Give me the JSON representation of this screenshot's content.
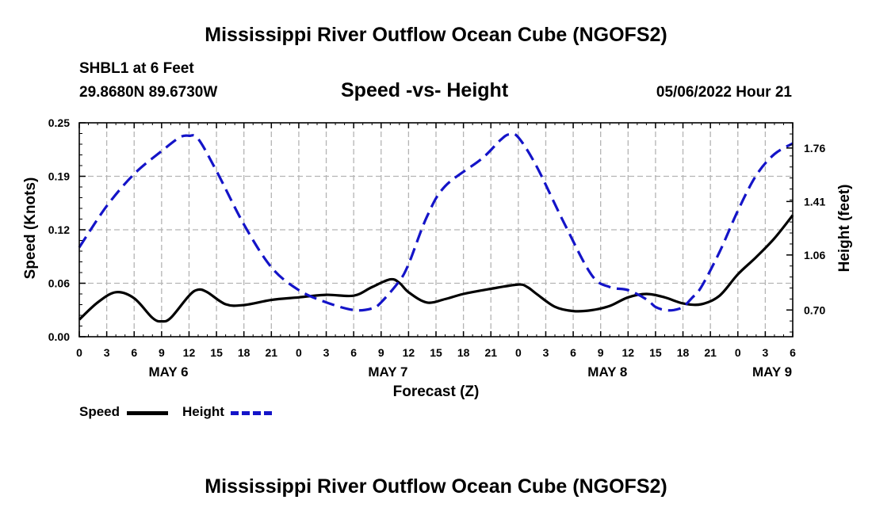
{
  "page": {
    "title_top": "Mississippi River Outflow Ocean Cube (NGOFS2)",
    "title_bottom": "Mississippi River Outflow Ocean Cube (NGOFS2)",
    "station": "SHBL1 at 6 Feet",
    "coords": "29.8680N  89.6730W",
    "subtitle": "Speed -vs- Height",
    "datetime": "05/06/2022 Hour 21"
  },
  "legend": {
    "speed_label": "Speed",
    "height_label": "Height",
    "speed_color": "#000000",
    "height_color": "#1414c8"
  },
  "chart_data": {
    "type": "line",
    "title": "Speed -vs- Height",
    "xlabel": "Forecast (Z)",
    "ylabel_left": "Speed (Knots)",
    "ylabel_right": "Height (feet)",
    "x_range_hours": [
      0,
      78
    ],
    "x_tick_step_hours": 3,
    "x_tick_labels": [
      "0",
      "3",
      "6",
      "9",
      "12",
      "15",
      "18",
      "21",
      "0",
      "3",
      "6",
      "9",
      "12",
      "15",
      "18",
      "21",
      "0",
      "3",
      "6",
      "9",
      "12",
      "15",
      "18",
      "21",
      "0",
      "3",
      "6"
    ],
    "date_labels": [
      {
        "label": "MAY 6",
        "hour": 9.75
      },
      {
        "label": "MAY 7",
        "hour": 33.75
      },
      {
        "label": "MAY 8",
        "hour": 57.75
      },
      {
        "label": "MAY 9",
        "hour": 75.75
      }
    ],
    "ylim_left": [
      0,
      0.25
    ],
    "yticks_left": [
      "0.00",
      "0.06",
      "0.12",
      "0.19",
      "0.25"
    ],
    "yticks_left_values": [
      0,
      0.0625,
      0.125,
      0.1875,
      0.25
    ],
    "ylim_right": [
      0.525,
      1.925
    ],
    "yticks_right": [
      "0.70",
      "1.06",
      "1.41",
      "1.76"
    ],
    "yticks_right_values": [
      0.7,
      1.06,
      1.41,
      1.76
    ],
    "grid": true,
    "series": [
      {
        "name": "Speed",
        "axis": "left",
        "style": "solid",
        "color": "#000000",
        "x": [
          0,
          2,
          4,
          6,
          8,
          9,
          10,
          12,
          13,
          14,
          16,
          18,
          21,
          24,
          27,
          30,
          32,
          34,
          35,
          36,
          38,
          40,
          42,
          45,
          48,
          49,
          50,
          52,
          54,
          56,
          58,
          60,
          62,
          64,
          66,
          68,
          70,
          72,
          74,
          76,
          78
        ],
        "y": [
          0.02,
          0.04,
          0.052,
          0.045,
          0.022,
          0.018,
          0.022,
          0.048,
          0.055,
          0.052,
          0.038,
          0.037,
          0.043,
          0.046,
          0.049,
          0.048,
          0.058,
          0.067,
          0.063,
          0.052,
          0.04,
          0.044,
          0.05,
          0.056,
          0.061,
          0.058,
          0.05,
          0.035,
          0.03,
          0.031,
          0.036,
          0.046,
          0.05,
          0.046,
          0.039,
          0.038,
          0.048,
          0.073,
          0.093,
          0.115,
          0.142
        ]
      },
      {
        "name": "Height",
        "axis": "right",
        "style": "dashed",
        "color": "#1414c8",
        "x": [
          0,
          3,
          6,
          9,
          11,
          12,
          13,
          15,
          18,
          21,
          24,
          27,
          30,
          32,
          33,
          35,
          36,
          38,
          40,
          44,
          46,
          47,
          48,
          50,
          53,
          56,
          58,
          60,
          62,
          63,
          64,
          65,
          66,
          67,
          68,
          70,
          72,
          74,
          76,
          78
        ],
        "y": [
          1.11,
          1.38,
          1.59,
          1.74,
          1.83,
          1.84,
          1.82,
          1.61,
          1.26,
          0.98,
          0.83,
          0.75,
          0.7,
          0.71,
          0.75,
          0.89,
          1.0,
          1.31,
          1.51,
          1.69,
          1.81,
          1.85,
          1.83,
          1.64,
          1.27,
          0.93,
          0.85,
          0.83,
          0.77,
          0.72,
          0.7,
          0.7,
          0.72,
          0.78,
          0.85,
          1.08,
          1.35,
          1.58,
          1.72,
          1.79
        ]
      }
    ]
  }
}
